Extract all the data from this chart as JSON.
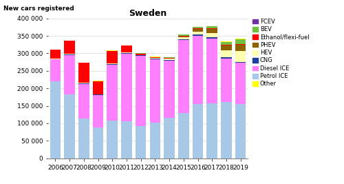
{
  "years": [
    2006,
    2007,
    2008,
    2009,
    2010,
    2011,
    2012,
    2013,
    2014,
    2015,
    2016,
    2017,
    2018,
    2019
  ],
  "title": "Sweden",
  "ylabel": "New cars registered",
  "categories": [
    "Other",
    "Petrol ICE",
    "Diesel ICE",
    "CNG",
    "HEV",
    "PHEV",
    "Ethanol/flexi-fuel",
    "BEV",
    "FCEV"
  ],
  "colors": [
    "#ffff00",
    "#a8c8e8",
    "#ff80ff",
    "#1f3f9f",
    "#ffffb0",
    "#8B6400",
    "#ff0000",
    "#70c040",
    "#7030a0"
  ],
  "data": {
    "Petrol ICE": [
      220000,
      183000,
      113000,
      88000,
      107000,
      106000,
      92000,
      101000,
      115000,
      130000,
      155000,
      156000,
      161000,
      154000
    ],
    "Diesel ICE": [
      63000,
      112000,
      100000,
      93000,
      160000,
      192000,
      200000,
      182000,
      165000,
      208000,
      196000,
      187000,
      125000,
      120000
    ],
    "CNG": [
      1000,
      1500,
      1500,
      1000,
      2000,
      2500,
      2000,
      2000,
      2000,
      2500,
      3000,
      3000,
      2500,
      2000
    ],
    "HEV": [
      1000,
      1500,
      1000,
      1000,
      1500,
      1500,
      1500,
      2000,
      2500,
      5000,
      7000,
      12000,
      20000,
      30000
    ],
    "PHEV": [
      0,
      0,
      0,
      0,
      0,
      0,
      0,
      0,
      1000,
      3000,
      8000,
      12000,
      15000,
      18000
    ],
    "Ethanol/flexi-fuel": [
      25000,
      38000,
      57000,
      38000,
      37000,
      20000,
      4000,
      2000,
      2000,
      2000,
      2000,
      2000,
      1500,
      1500
    ],
    "BEV": [
      0,
      0,
      0,
      0,
      0,
      0,
      500,
      1000,
      2000,
      3000,
      4000,
      5000,
      8000,
      15000
    ],
    "FCEV": [
      0,
      0,
      0,
      0,
      0,
      0,
      0,
      0,
      0,
      0,
      100,
      200,
      200,
      300
    ],
    "Other": [
      500,
      500,
      500,
      500,
      500,
      500,
      500,
      500,
      500,
      500,
      500,
      500,
      500,
      500
    ]
  },
  "ylim": [
    0,
    400000
  ],
  "yticks": [
    0,
    50000,
    100000,
    150000,
    200000,
    250000,
    300000,
    350000,
    400000
  ],
  "ytick_labels": [
    "0",
    "50 000",
    "100 000",
    "150 000",
    "200 000",
    "250 000",
    "300 000",
    "350 000",
    "400 000"
  ],
  "legend_order": [
    "FCEV",
    "BEV",
    "Ethanol/flexi-fuel",
    "PHEV",
    "HEV",
    "CNG",
    "Diesel ICE",
    "Petrol ICE",
    "Other"
  ],
  "background_color": "#ffffff",
  "grid_color": "#d8d8d8"
}
